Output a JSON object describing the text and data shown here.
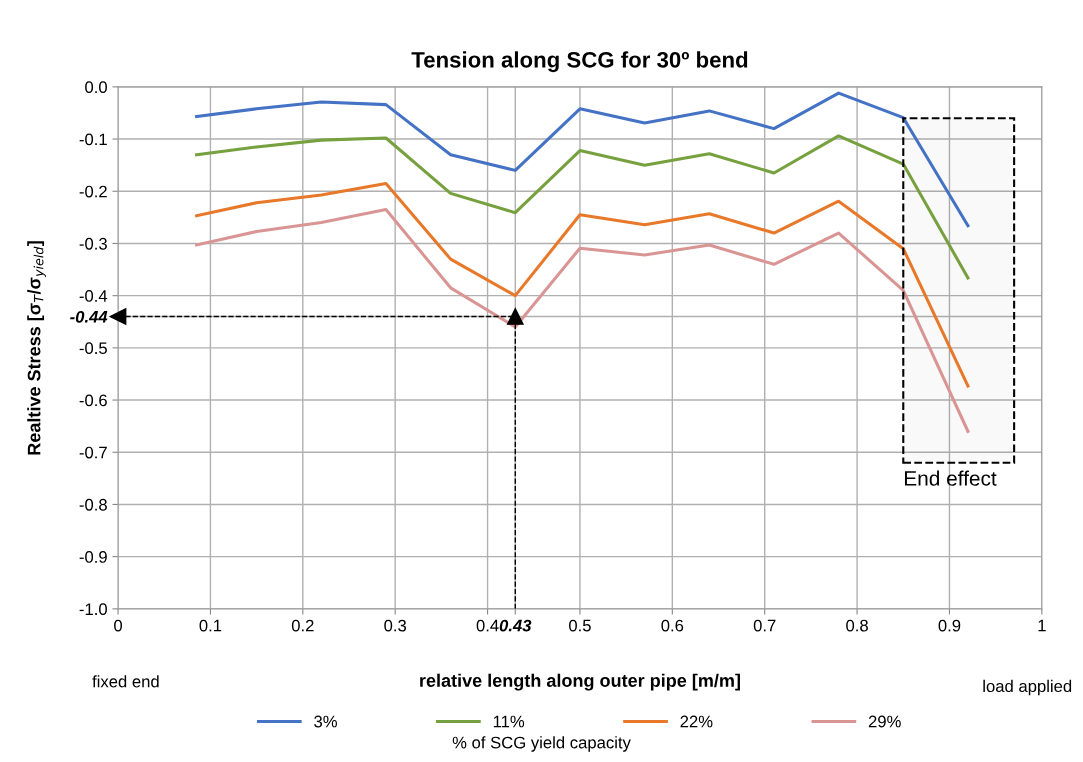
{
  "chart_data": {
    "type": "line",
    "title": "Tension along SCG for 30º bend",
    "xlabel": "relative length along outer pipe [m/m]",
    "ylabel": "Realtive Stress [σ$_{T}$/σ$_{yield}$]",
    "legend_title": "% of SCG yield capacity",
    "x": [
      0.085,
      0.15,
      0.22,
      0.29,
      0.36,
      0.43,
      0.5,
      0.57,
      0.64,
      0.71,
      0.78,
      0.85,
      0.92
    ],
    "series": [
      {
        "name": "3%",
        "color": "#4472c4",
        "values": [
          -0.057,
          -0.042,
          -0.029,
          -0.034,
          -0.13,
          -0.16,
          -0.042,
          -0.069,
          -0.046,
          -0.08,
          -0.012,
          -0.059,
          -0.266
        ]
      },
      {
        "name": "11%",
        "color": "#77a03f",
        "values": [
          -0.13,
          -0.115,
          -0.102,
          -0.098,
          -0.204,
          -0.241,
          -0.122,
          -0.15,
          -0.128,
          -0.165,
          -0.094,
          -0.148,
          -0.366
        ]
      },
      {
        "name": "22%",
        "color": "#e8782a",
        "values": [
          -0.247,
          -0.222,
          -0.207,
          -0.185,
          -0.33,
          -0.4,
          -0.245,
          -0.264,
          -0.243,
          -0.28,
          -0.219,
          -0.31,
          -0.573
        ]
      },
      {
        "name": "29%",
        "color": "#d99594",
        "values": [
          -0.303,
          -0.277,
          -0.26,
          -0.235,
          -0.385,
          -0.46,
          -0.309,
          -0.322,
          -0.303,
          -0.34,
          -0.28,
          -0.39,
          -0.66
        ]
      }
    ],
    "xlim": [
      0,
      1
    ],
    "xticks": [
      0,
      0.1,
      0.2,
      0.3,
      0.4,
      {
        "value": 0.43,
        "label": "0.43"
      },
      0.5,
      0.6,
      0.7,
      0.8,
      0.9,
      1
    ],
    "ylim": [
      -1,
      0
    ],
    "yticks": [
      {
        "value": -1,
        "label": "-1.0"
      },
      {
        "value": -0.9,
        "label": "-0.9"
      },
      {
        "value": -0.8,
        "label": "-0.8"
      },
      {
        "value": -0.7,
        "label": "-0.7"
      },
      {
        "value": -0.6,
        "label": "-0.6"
      },
      {
        "value": -0.5,
        "label": "-0.5"
      },
      {
        "value": -0.44,
        "label": "-0.44"
      },
      {
        "value": -0.4,
        "label": "-0.4"
      },
      {
        "value": -0.3,
        "label": "-0.3"
      },
      {
        "value": -0.2,
        "label": "-0.2"
      },
      {
        "value": -0.1,
        "label": "-0.1"
      },
      {
        "value": 0,
        "label": "0.0"
      }
    ],
    "bands": [
      {
        "axis": "x",
        "from": 0.85,
        "to": 0.97,
        "label": "End effect",
        "color": "#000000"
      }
    ],
    "ref_lines": [
      {
        "axis": "y",
        "value": -0.44,
        "color": "#000000",
        "line_style": "dashed"
      },
      {
        "axis": "x",
        "value": 0.43,
        "color": "#000000",
        "line_style": "dashed"
      }
    ],
    "annotations": [
      "fixed end",
      "load applied"
    ],
    "grid": true,
    "legend": "bottom",
    "marker": "none",
    "line_style": "solid"
  }
}
